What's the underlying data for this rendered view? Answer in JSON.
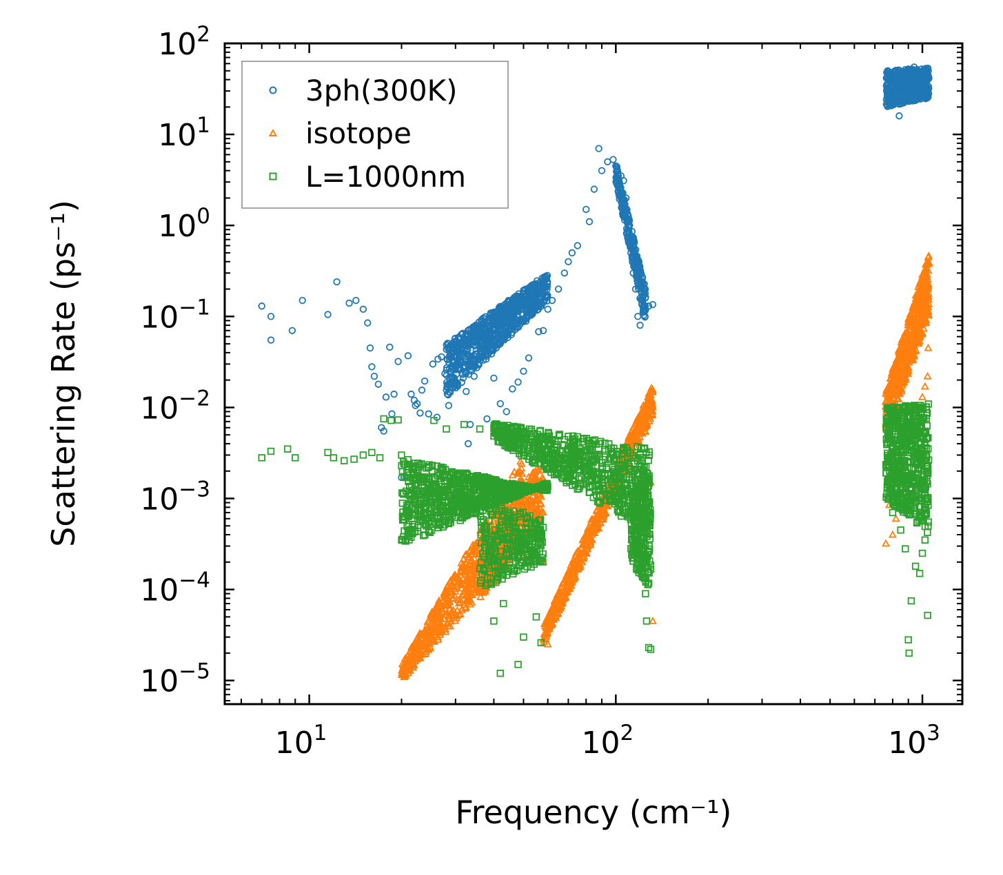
{
  "chart_data": {
    "type": "scatter",
    "xscale": "log",
    "yscale": "log",
    "xlim": [
      5.3,
      1350
    ],
    "ylim": [
      5.5e-06,
      100
    ],
    "xlabel": "Frequency (cm⁻¹)",
    "ylabel": "Scattering Rate (ps⁻¹)",
    "x_ticks": [
      {
        "value": 10,
        "base": "10",
        "exp": "1"
      },
      {
        "value": 100,
        "base": "10",
        "exp": "2"
      },
      {
        "value": 1000,
        "base": "10",
        "exp": "3"
      }
    ],
    "y_ticks": [
      {
        "value": 100,
        "base": "10",
        "exp": "2"
      },
      {
        "value": 10,
        "base": "10",
        "exp": "1"
      },
      {
        "value": 1,
        "base": "10",
        "exp": "0"
      },
      {
        "value": 0.1,
        "base": "10",
        "exp": "−1"
      },
      {
        "value": 0.01,
        "base": "10",
        "exp": "−2"
      },
      {
        "value": 0.001,
        "base": "10",
        "exp": "−3"
      },
      {
        "value": 0.0001,
        "base": "10",
        "exp": "−4"
      },
      {
        "value": 1e-05,
        "base": "10",
        "exp": "−5"
      }
    ],
    "legend": {
      "position": "top-left"
    },
    "series": [
      {
        "name": "3ph(300K)",
        "marker": "circle",
        "color": "#1f77b4",
        "points": [
          [
            7,
            0.13
          ],
          [
            7.5,
            0.1
          ],
          [
            7.5,
            0.055
          ],
          [
            8.8,
            0.07
          ],
          [
            9.5,
            0.15
          ],
          [
            11.5,
            0.105
          ],
          [
            12.3,
            0.24
          ],
          [
            13.5,
            0.14
          ],
          [
            14.2,
            0.15
          ],
          [
            15,
            0.12
          ],
          [
            15.5,
            0.085
          ],
          [
            15.8,
            0.045
          ],
          [
            16,
            0.028
          ],
          [
            16.3,
            0.022
          ],
          [
            16.8,
            0.018
          ],
          [
            17.2,
            0.006
          ],
          [
            17.5,
            0.0055
          ],
          [
            17.8,
            0.013
          ],
          [
            18.3,
            0.046
          ],
          [
            18.6,
            0.0085
          ],
          [
            18.9,
            0.014
          ],
          [
            19.5,
            0.032
          ],
          [
            20,
            0.0017
          ],
          [
            21,
            0.037
          ],
          [
            21.5,
            0.014
          ],
          [
            22,
            0.012
          ],
          [
            22.2,
            0.0105
          ],
          [
            22.5,
            0.011
          ],
          [
            23,
            0.0087
          ],
          [
            23.3,
            0.0155
          ],
          [
            23.8,
            0.0195
          ],
          [
            24.5,
            0.0085
          ],
          [
            25.3,
            0.03
          ],
          [
            26.1,
            0.0078
          ],
          [
            26.3,
            0.034
          ],
          [
            27,
            0.036
          ],
          [
            27.7,
            0.0235
          ],
          [
            28.5,
            0.0105
          ],
          [
            29.2,
            0.033
          ],
          [
            30,
            0.026
          ],
          [
            31,
            0.036
          ],
          [
            32.5,
            0.015
          ],
          [
            33,
            0.004
          ],
          [
            33.5,
            0.0065
          ],
          [
            34.5,
            0.022
          ],
          [
            35.5,
            0.03
          ],
          [
            38,
            0.0075
          ],
          [
            40,
            0.021
          ],
          [
            42,
            0.011
          ],
          [
            44,
            0.009
          ],
          [
            46,
            0.016
          ],
          [
            48,
            0.019
          ],
          [
            50,
            0.025
          ],
          [
            52,
            0.035
          ],
          [
            56,
            0.068
          ],
          [
            58,
            0.07
          ],
          [
            60,
            0.12
          ],
          [
            62,
            0.15
          ],
          [
            65,
            0.2
          ],
          [
            68,
            0.3
          ],
          [
            70,
            0.4
          ],
          [
            72,
            0.5
          ],
          [
            75,
            0.6
          ],
          [
            80,
            1.5
          ],
          [
            82,
            1.1
          ],
          [
            85,
            2.5
          ],
          [
            88,
            7
          ],
          [
            90,
            4
          ],
          [
            94,
            5
          ],
          [
            98,
            5.3
          ],
          [
            100,
            4.5
          ],
          [
            104,
            3.5
          ],
          [
            106,
            3.1
          ],
          [
            108,
            2.0
          ],
          [
            110,
            1.0
          ],
          [
            112,
            0.5
          ],
          [
            114,
            0.3
          ],
          [
            116,
            0.2
          ],
          [
            118,
            0.1
          ],
          [
            120,
            0.08
          ],
          [
            124,
            0.12
          ],
          [
            128,
            0.13
          ],
          [
            132,
            0.135
          ],
          [
            780,
            22
          ],
          [
            800,
            30
          ],
          [
            820,
            45
          ],
          [
            840,
            16
          ],
          [
            860,
            35
          ],
          [
            880,
            28
          ],
          [
            900,
            50
          ],
          [
            920,
            40
          ],
          [
            940,
            55
          ],
          [
            960,
            32
          ],
          [
            980,
            45
          ],
          [
            1000,
            38
          ],
          [
            1020,
            42
          ],
          [
            1040,
            40
          ]
        ],
        "clusters": [
          {
            "x": [
              28,
              60
            ],
            "y_start": [
              0.013,
              0.15
            ],
            "y_end": [
              0.05,
              0.3
            ],
            "n": 800
          },
          {
            "x": [
              100,
              125
            ],
            "y_start": [
              3.0,
              0.08
            ],
            "y_end": [
              5.0,
              0.2
            ],
            "n": 260
          },
          {
            "x": [
              760,
              1050
            ],
            "y_start": [
              20,
              25
            ],
            "y_end": [
              50,
              55
            ],
            "n": 500
          }
        ]
      },
      {
        "name": "isotope",
        "marker": "triangle",
        "color": "#ff7f0e",
        "points": [
          [
            40,
            0.00012
          ],
          [
            46,
            0.0005
          ],
          [
            50,
            0.00025
          ],
          [
            58,
            0.0002
          ],
          [
            60,
            2.5e-05
          ],
          [
            115,
            0.0018
          ],
          [
            118,
            0.00085
          ],
          [
            120,
            0.00055
          ],
          [
            125,
            0.0019
          ],
          [
            130,
            0.0015
          ],
          [
            132,
            4.5e-05
          ],
          [
            760,
            0.00032
          ],
          [
            780,
            0.00085
          ],
          [
            800,
            0.0004
          ],
          [
            820,
            0.0006
          ],
          [
            860,
            0.002
          ],
          [
            900,
            0.0012
          ],
          [
            1000,
            0.013
          ],
          [
            1020,
            0.017
          ],
          [
            1040,
            0.022
          ],
          [
            1045,
            0.045
          ]
        ],
        "clusters": [
          {
            "x": [
              20,
              50
            ],
            "y_start": [
              1e-05,
              0.0003
            ],
            "y_end": [
              1.5e-05,
              0.003
            ],
            "n": 700
          },
          {
            "x": [
              36,
              58
            ],
            "y_start": [
              8e-05,
              0.0006
            ],
            "y_end": [
              0.0002,
              0.0035
            ],
            "n": 400
          },
          {
            "x": [
              58,
              132
            ],
            "y_start": [
              2.5e-05,
              0.008
            ],
            "y_end": [
              4e-05,
              0.018
            ],
            "n": 700
          },
          {
            "x": [
              760,
              1050
            ],
            "y_start": [
              0.005,
              0.1
            ],
            "y_end": [
              0.015,
              0.5
            ],
            "n": 600
          }
        ]
      },
      {
        "name": "L=1000nm",
        "marker": "square",
        "color": "#2ca02c",
        "points": [
          [
            7,
            0.0028
          ],
          [
            7.5,
            0.0033
          ],
          [
            8.5,
            0.0035
          ],
          [
            9,
            0.0028
          ],
          [
            11.5,
            0.0032
          ],
          [
            12,
            0.0028
          ],
          [
            13,
            0.0026
          ],
          [
            14,
            0.0027
          ],
          [
            15,
            0.003
          ],
          [
            16,
            0.0032
          ],
          [
            17,
            0.0028
          ],
          [
            17.5,
            0.0075
          ],
          [
            18.5,
            0.0072
          ],
          [
            19.5,
            0.0073
          ],
          [
            20,
            0.003
          ],
          [
            25.5,
            0.0072
          ],
          [
            28,
            0.0058
          ],
          [
            32,
            0.0065
          ],
          [
            36,
            0.0058
          ],
          [
            40,
            4.5e-05
          ],
          [
            42,
            1.2e-05
          ],
          [
            43,
            7e-05
          ],
          [
            48,
            1.5e-05
          ],
          [
            50,
            3e-05
          ],
          [
            55,
            5e-05
          ],
          [
            57,
            2.6e-05
          ],
          [
            110,
            0.00082
          ],
          [
            112,
            0.0012
          ],
          [
            125,
            9e-05
          ],
          [
            126,
            4.5e-05
          ],
          [
            128,
            2.3e-05
          ],
          [
            130,
            2.2e-05
          ],
          [
            800,
            0.0007
          ],
          [
            850,
            0.00045
          ],
          [
            880,
            0.00028
          ],
          [
            900,
            2.8e-05
          ],
          [
            905,
            2e-05
          ],
          [
            920,
            7.5e-05
          ],
          [
            950,
            0.00018
          ],
          [
            980,
            0.00015
          ],
          [
            1000,
            0.00025
          ],
          [
            1020,
            0.00035
          ],
          [
            1040,
            5.2e-05
          ]
        ],
        "clusters": [
          {
            "x": [
              20,
              60
            ],
            "y_start": [
              0.0028,
              0.0012
            ],
            "y_end": [
              0.0003,
              0.0015
            ],
            "n": 900
          },
          {
            "x": [
              36,
              58
            ],
            "y_start": [
              0.0001,
              0.0002
            ],
            "y_end": [
              0.001,
              0.0006
            ],
            "n": 300
          },
          {
            "x": [
              40,
              130
            ],
            "y_start": [
              0.0068,
              0.0035
            ],
            "y_end": [
              0.0045,
              0.0004
            ],
            "n": 700
          },
          {
            "x": [
              112,
              130
            ],
            "y_start": [
              0.0012,
              0.002
            ],
            "y_end": [
              0.0002,
              0.0001
            ],
            "n": 250
          },
          {
            "x": [
              760,
              1050
            ],
            "y_start": [
              0.001,
              0.0004
            ],
            "y_end": [
              0.01,
              0.011
            ],
            "n": 600
          }
        ]
      }
    ]
  }
}
